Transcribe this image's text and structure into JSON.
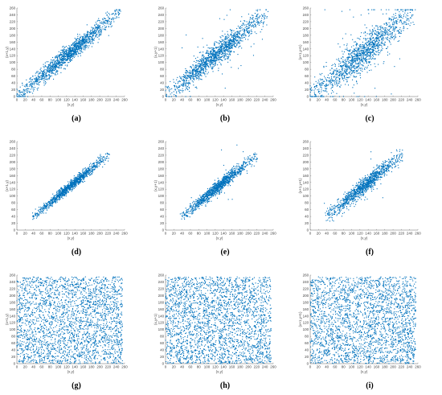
{
  "theme": {
    "point_color": "#0072BD",
    "axis_color": "#666666"
  },
  "chart_data": [
    {
      "id": "a",
      "caption": "(a)",
      "type": "scatter",
      "xlabel": "(x,y)",
      "ylabel": "(x+1,y)",
      "xlim": [
        0,
        260
      ],
      "ylim": [
        0,
        260
      ],
      "xticks": [
        0,
        20,
        40,
        60,
        80,
        100,
        120,
        140,
        160,
        180,
        200,
        220,
        240,
        260
      ],
      "yticks": [
        0,
        20,
        40,
        60,
        80,
        100,
        120,
        140,
        160,
        180,
        200,
        220,
        240,
        260
      ],
      "distribution": {
        "kind": "correlated",
        "xmin": 2,
        "xmax": 250,
        "y_spread": 12,
        "outlier_rate": 0.0,
        "points": 1400,
        "seed": 11
      }
    },
    {
      "id": "b",
      "caption": "(b)",
      "type": "scatter",
      "xlabel": "(x,y)",
      "ylabel": "(x,y+1)",
      "xlim": [
        0,
        260
      ],
      "ylim": [
        0,
        260
      ],
      "xticks": [
        0,
        20,
        40,
        60,
        80,
        100,
        120,
        140,
        160,
        180,
        200,
        220,
        240,
        260
      ],
      "yticks": [
        0,
        20,
        40,
        60,
        80,
        100,
        120,
        140,
        160,
        180,
        200,
        220,
        240,
        260
      ],
      "distribution": {
        "kind": "correlated",
        "xmin": 2,
        "xmax": 245,
        "y_spread": 16,
        "outlier_rate": 0.04,
        "points": 1400,
        "seed": 23
      }
    },
    {
      "id": "c",
      "caption": "(c)",
      "type": "scatter",
      "xlabel": "(x,y)",
      "ylabel": "(x+1,y+1)",
      "xlim": [
        0,
        260
      ],
      "ylim": [
        0,
        260
      ],
      "xticks": [
        0,
        20,
        40,
        60,
        80,
        100,
        120,
        140,
        160,
        180,
        200,
        220,
        240,
        260
      ],
      "yticks": [
        0,
        20,
        40,
        60,
        80,
        100,
        120,
        140,
        160,
        180,
        200,
        220,
        240,
        260
      ],
      "distribution": {
        "kind": "correlated",
        "xmin": 2,
        "xmax": 250,
        "y_spread": 22,
        "outlier_rate": 0.05,
        "points": 1400,
        "seed": 37
      }
    },
    {
      "id": "d",
      "caption": "(d)",
      "type": "scatter",
      "xlabel": "(x,y)",
      "ylabel": "(x+1,y)",
      "xlim": [
        0,
        260
      ],
      "ylim": [
        0,
        260
      ],
      "xticks": [
        0,
        20,
        40,
        60,
        80,
        100,
        120,
        140,
        160,
        180,
        200,
        220,
        240,
        260
      ],
      "yticks": [
        0,
        20,
        40,
        60,
        80,
        100,
        120,
        140,
        160,
        180,
        200,
        220,
        240,
        260
      ],
      "distribution": {
        "kind": "correlated",
        "xmin": 38,
        "xmax": 222,
        "y_spread": 7,
        "outlier_rate": 0.0,
        "points": 1100,
        "seed": 41
      }
    },
    {
      "id": "e",
      "caption": "(e)",
      "type": "scatter",
      "xlabel": "(x,y)",
      "ylabel": "(x,y+1)",
      "xlim": [
        0,
        260
      ],
      "ylim": [
        0,
        260
      ],
      "xticks": [
        0,
        20,
        40,
        60,
        80,
        100,
        120,
        140,
        160,
        180,
        200,
        220,
        240,
        260
      ],
      "yticks": [
        0,
        20,
        40,
        60,
        80,
        100,
        120,
        140,
        160,
        180,
        200,
        220,
        240,
        260
      ],
      "distribution": {
        "kind": "correlated",
        "xmin": 38,
        "xmax": 220,
        "y_spread": 9,
        "outlier_rate": 0.01,
        "points": 1100,
        "seed": 53
      }
    },
    {
      "id": "f",
      "caption": "(f)",
      "type": "scatter",
      "xlabel": "(x,y)",
      "ylabel": "(x+1,y+1)",
      "xlim": [
        0,
        260
      ],
      "ylim": [
        0,
        260
      ],
      "xticks": [
        0,
        20,
        40,
        60,
        80,
        100,
        120,
        140,
        160,
        180,
        200,
        220,
        240,
        260
      ],
      "yticks": [
        0,
        20,
        40,
        60,
        80,
        100,
        120,
        140,
        160,
        180,
        200,
        220,
        240,
        260
      ],
      "distribution": {
        "kind": "correlated",
        "xmin": 38,
        "xmax": 222,
        "y_spread": 11,
        "outlier_rate": 0.015,
        "points": 1100,
        "seed": 67
      }
    },
    {
      "id": "g",
      "caption": "(g)",
      "type": "scatter",
      "xlabel": "(x,y)",
      "ylabel": "(x+1,y)",
      "xlim": [
        0,
        260
      ],
      "ylim": [
        0,
        260
      ],
      "xticks": [
        0,
        20,
        40,
        60,
        80,
        100,
        120,
        140,
        160,
        180,
        200,
        220,
        240,
        260
      ],
      "yticks": [
        0,
        20,
        40,
        60,
        80,
        100,
        120,
        140,
        160,
        180,
        200,
        220,
        240,
        260
      ],
      "distribution": {
        "kind": "uniform",
        "xmin": 0,
        "xmax": 255,
        "ymin": 0,
        "ymax": 255,
        "points": 2600,
        "seed": 71
      }
    },
    {
      "id": "h",
      "caption": "(h)",
      "type": "scatter",
      "xlabel": "(x,y)",
      "ylabel": "(x,y+1)",
      "xlim": [
        0,
        260
      ],
      "ylim": [
        0,
        260
      ],
      "xticks": [
        0,
        20,
        40,
        60,
        80,
        100,
        120,
        140,
        160,
        180,
        200,
        220,
        240,
        260
      ],
      "yticks": [
        0,
        20,
        40,
        60,
        80,
        100,
        120,
        140,
        160,
        180,
        200,
        220,
        240,
        260
      ],
      "distribution": {
        "kind": "uniform",
        "xmin": 0,
        "xmax": 255,
        "ymin": 0,
        "ymax": 255,
        "points": 2600,
        "seed": 83
      }
    },
    {
      "id": "i",
      "caption": "(i)",
      "type": "scatter",
      "xlabel": "(x,y)",
      "ylabel": "(x+1,y+1)",
      "xlim": [
        0,
        260
      ],
      "ylim": [
        0,
        260
      ],
      "xticks": [
        0,
        20,
        40,
        60,
        80,
        100,
        120,
        140,
        160,
        180,
        200,
        220,
        240,
        260
      ],
      "yticks": [
        0,
        20,
        40,
        60,
        80,
        100,
        120,
        140,
        160,
        180,
        200,
        220,
        240,
        260
      ],
      "distribution": {
        "kind": "uniform",
        "xmin": 0,
        "xmax": 255,
        "ymin": 0,
        "ymax": 255,
        "points": 2600,
        "seed": 97
      }
    }
  ]
}
